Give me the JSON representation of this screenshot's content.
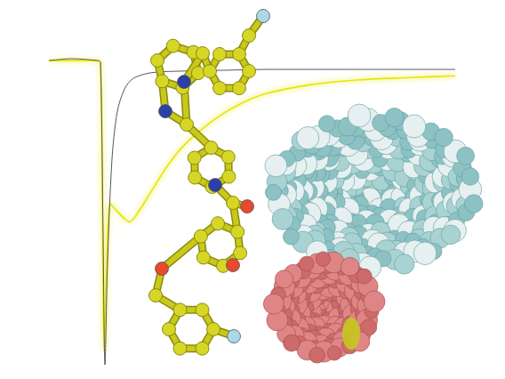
{
  "chart_data": {
    "type": "line",
    "tick_labels": false,
    "grid": false,
    "xlim": [
      0,
      100
    ],
    "ylim": [
      -100,
      5
    ],
    "series": [
      {
        "color": "#555555",
        "x": [
          0,
          5.5,
          12,
          12.7,
          13.3,
          13.8,
          14.4,
          15.5,
          16.8,
          18.6,
          20.8,
          25.2,
          31.7,
          42.7,
          53.6,
          75.5,
          100
        ],
        "values": [
          0,
          0.6,
          0,
          -0.6,
          -53,
          -100,
          -68,
          -33,
          -17,
          -9.4,
          -5.8,
          -4,
          -3.5,
          -3.2,
          -2.9,
          -2.9,
          -2.9
        ]
      },
      {
        "color": "#e6e600",
        "x": [
          0,
          12,
          12.7,
          13.1,
          13.6,
          14.2,
          15.1,
          16.4,
          18.6,
          19.9,
          21.9,
          25.2,
          29.5,
          33.9,
          40.5,
          47,
          53.6,
          64.6,
          75.5,
          88.6,
          100
        ],
        "values": [
          0,
          0,
          -0.6,
          -38.6,
          -95.6,
          -68,
          -47,
          -49,
          -52,
          -53,
          -50,
          -43,
          -34,
          -27,
          -19.6,
          -14.3,
          -10.8,
          -7.9,
          -6.4,
          -5.6,
          -5
        ]
      }
    ]
  }
}
